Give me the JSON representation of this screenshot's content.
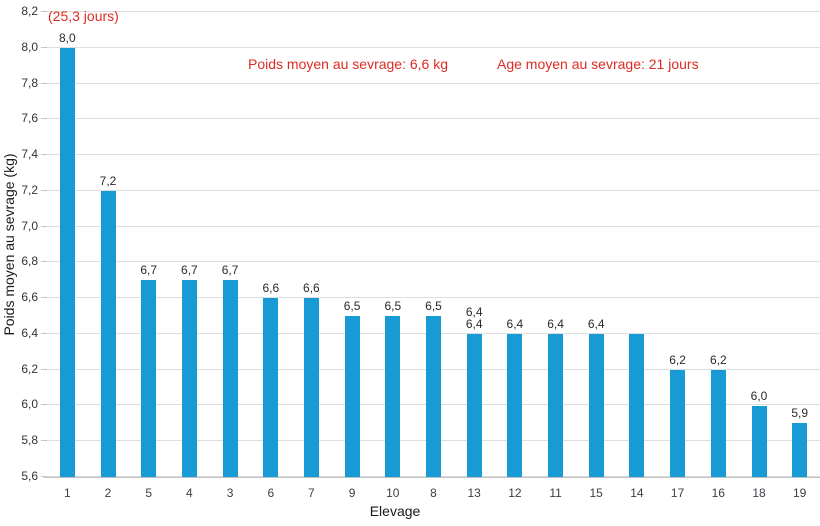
{
  "chart_data": {
    "type": "bar",
    "title": "",
    "xlabel": "Elevage",
    "ylabel": "Poids moyen au sevrage (kg)",
    "ylim": [
      5.6,
      8.2
    ],
    "ytick_step": 0.2,
    "ytick_labels": [
      "8,2",
      "8,0",
      "7,8",
      "7,6",
      "7,4",
      "7,2",
      "7,0",
      "6,8",
      "6,6",
      "6,4",
      "6,2",
      "6,0",
      "5,8",
      "5,6"
    ],
    "grid": true,
    "legend": "none",
    "bar_color": "#189bd5",
    "gridline_color": "#dedede",
    "axis_line_color": "#c0c0c0",
    "annotation_color": "#dd2c23",
    "categories": [
      "1",
      "2",
      "5",
      "4",
      "3",
      "6",
      "7",
      "9",
      "10",
      "8",
      "13",
      "12",
      "11",
      "15",
      "14",
      "17",
      "16",
      "18",
      "19"
    ],
    "values": [
      8.0,
      7.2,
      6.7,
      6.7,
      6.7,
      6.6,
      6.6,
      6.5,
      6.5,
      6.5,
      6.4,
      6.4,
      6.4,
      6.4,
      6.4,
      6.2,
      6.2,
      6.0,
      5.9
    ],
    "bar_labels": [
      [
        "8,0"
      ],
      [
        "7,2"
      ],
      [
        "6,7"
      ],
      [
        "6,7"
      ],
      [
        "6,7"
      ],
      [
        "6,6"
      ],
      [
        "6,6"
      ],
      [
        "6,5"
      ],
      [
        "6,5"
      ],
      [
        "6,5"
      ],
      [
        "6,4",
        "6,4"
      ],
      [
        "6,4"
      ],
      [
        "6,4"
      ],
      [
        "6,4"
      ],
      [],
      [
        "6,2"
      ],
      [
        "6,2"
      ],
      [
        "6,0"
      ],
      [
        "5,9"
      ]
    ],
    "annotations": [
      {
        "text": "(25,3 jours)",
        "x": 48,
        "y": 9
      },
      {
        "text": "Poids moyen au sevrage: 6,6 kg",
        "x": 248,
        "y": 57
      },
      {
        "text": "Age moyen au sevrage: 21 jours",
        "x": 497,
        "y": 57
      }
    ]
  }
}
